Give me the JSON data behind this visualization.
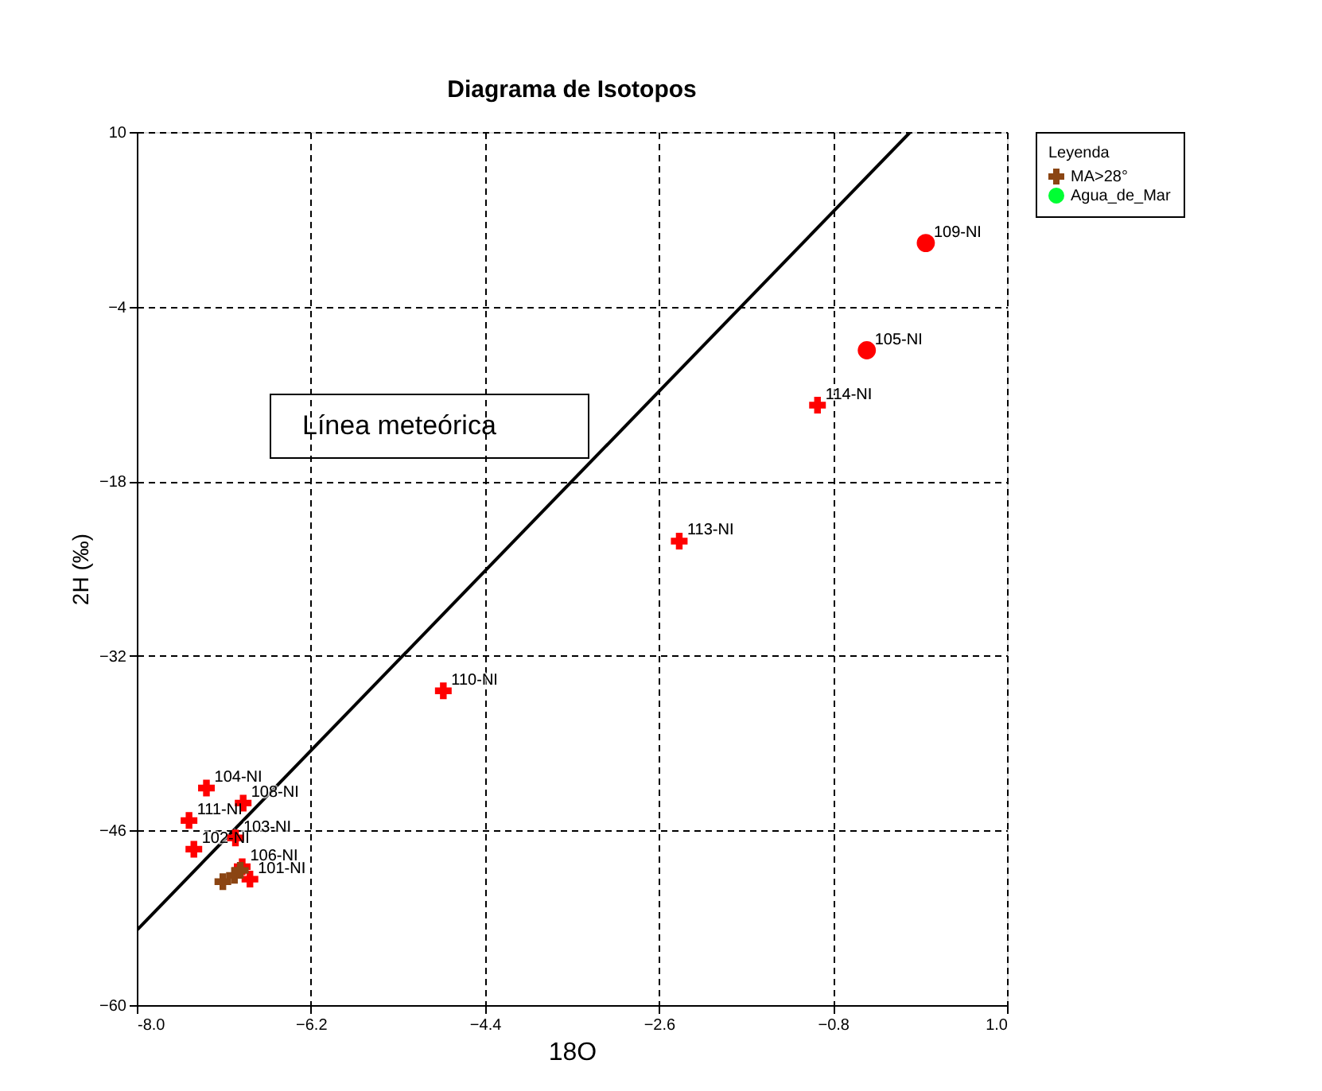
{
  "chart_data": {
    "type": "scatter",
    "title": "Diagrama de Isotopos",
    "xlabel": "18O",
    "ylabel": "2H (‰)",
    "legend_title": "Leyenda",
    "legend": "top right",
    "grid": true,
    "line_style": "dashed",
    "xlim": [
      -8,
      1
    ],
    "ylim": [
      -60,
      10
    ],
    "xticks": [
      {
        "value": -8,
        "label": "-8.0"
      },
      -6.2,
      -4.4,
      -2.6,
      -0.8,
      {
        "value": 1,
        "label": "1.0"
      }
    ],
    "yticks": [
      -60,
      -46,
      -32,
      -18,
      -4,
      10
    ],
    "series": [
      {
        "marker": "cross",
        "color": "#ff0000",
        "x": [
          -7.28,
          -6.9,
          -7.46,
          -6.98,
          -7.41,
          -6.91,
          -6.83,
          -4.83,
          -2.39,
          -0.96
        ],
        "values": [
          -42.6,
          -43.8,
          -45.2,
          -46.6,
          -47.5,
          -48.9,
          -49.9,
          -34.8,
          -22.8,
          -11.9
        ]
      },
      {
        "marker": "circle",
        "color": "#ff0000",
        "x": [
          -0.45,
          0.16
        ],
        "values": [
          -7.5,
          1.1
        ]
      },
      {
        "marker": "cross",
        "name": "MA>28°",
        "color": "#8b4513",
        "x": [
          -7.11,
          -6.99,
          -6.93
        ],
        "values": [
          -50.1,
          -49.6,
          -49.2
        ]
      },
      {
        "marker": "circle",
        "name": "Agua_de_Mar",
        "color": "#00ff33"
      },
      {
        "type": "line",
        "color": "#000000",
        "line_style": "solid",
        "x": [
          -8,
          0
        ],
        "values": [
          -54,
          10
        ]
      }
    ],
    "annotations": [
      {
        "text": "104-NI",
        "x": -7.28,
        "y": -42.6
      },
      {
        "text": "108-NI",
        "x": -6.9,
        "y": -43.8
      },
      {
        "text": "111-NI",
        "x": -7.46,
        "y": -45.2
      },
      {
        "text": "103-NI",
        "x": -6.98,
        "y": -46.6
      },
      {
        "text": "102-NI",
        "x": -7.41,
        "y": -47.5
      },
      {
        "text": "106-NI",
        "x": -6.91,
        "y": -48.9
      },
      {
        "text": "101-NI",
        "x": -6.83,
        "y": -49.9
      },
      {
        "text": "110-NI",
        "x": -4.83,
        "y": -34.8
      },
      {
        "text": "113-NI",
        "x": -2.39,
        "y": -22.8
      },
      {
        "text": "114-NI",
        "x": -0.96,
        "y": -11.9
      },
      {
        "text": "105-NI",
        "x": -0.45,
        "y": -7.5
      },
      {
        "text": "109-NI",
        "x": 0.16,
        "y": 1.1
      },
      "Línea meteórica"
    ]
  }
}
